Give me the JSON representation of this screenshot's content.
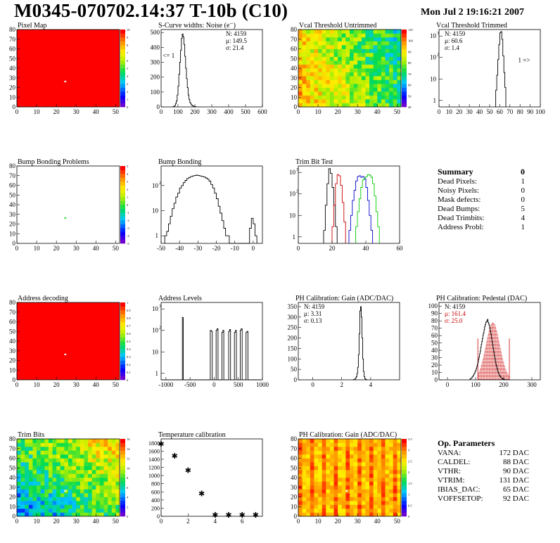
{
  "header": {
    "title": "M0345-070702.14:37 T-10b (C10)",
    "date": "Mon Jul  2 19:16:21 2007"
  },
  "summary": {
    "title": "Summary",
    "title_value": "0",
    "rows": [
      {
        "label": "Dead Pixels:",
        "value": "1"
      },
      {
        "label": "Noisy Pixels:",
        "value": "0"
      },
      {
        "label": "Mask defects:",
        "value": "0"
      },
      {
        "label": "Dead Bumps:",
        "value": "5"
      },
      {
        "label": "Dead Trimbits:",
        "value": "4"
      },
      {
        "label": "Address Probl:",
        "value": "1"
      }
    ]
  },
  "op_params": {
    "title": "Op. Parameters",
    "rows": [
      {
        "label": "VANA:",
        "value": "172 DAC"
      },
      {
        "label": "CALDEL:",
        "value": "88 DAC"
      },
      {
        "label": "VTHR:",
        "value": "90 DAC"
      },
      {
        "label": "VTRIM:",
        "value": "131 DAC"
      },
      {
        "label": "IBIAS_DAC:",
        "value": "65 DAC"
      },
      {
        "label": "VOFFSETOP:",
        "value": "92 DAC"
      }
    ]
  },
  "chart_data": [
    {
      "id": "pixel_map",
      "type": "heatmap",
      "title": "Pixel Map",
      "xlim": [
        0,
        52
      ],
      "ylim": [
        0,
        80
      ],
      "xticks": [
        0,
        10,
        20,
        30,
        40,
        50
      ],
      "yticks": [
        0,
        10,
        20,
        30,
        40,
        50,
        60,
        70,
        80
      ],
      "zlim": [
        0,
        10
      ],
      "palette": "uniform",
      "fill": "#ff0000",
      "zticks": [
        "0",
        "1",
        "2",
        "3",
        "4",
        "5",
        "6",
        "7",
        "8",
        "9",
        "10"
      ],
      "special_pixels": [
        {
          "x": 24,
          "y": 26,
          "color": "#ffffff"
        }
      ]
    },
    {
      "id": "scurve",
      "type": "histogram",
      "title": "S-Curve widths: Noise (e⁻)",
      "xlim": [
        0,
        600
      ],
      "ylim": [
        0,
        520
      ],
      "xticks": [
        0,
        100,
        200,
        300,
        400,
        500,
        600
      ],
      "yticks": [
        0,
        100,
        200,
        300,
        400,
        500
      ],
      "log": false,
      "stats": [
        "N: 4159",
        "μ: 149.5",
        "σ: 21.4"
      ],
      "annotations": [
        {
          "text": "<= 1",
          "x": 45,
          "y": 330
        }
      ],
      "series": [
        {
          "color": "#000000",
          "x0": 70,
          "bw": 5,
          "values": [
            2,
            4,
            10,
            22,
            40,
            80,
            140,
            220,
            300,
            380,
            460,
            490,
            470,
            420,
            340,
            260,
            190,
            130,
            80,
            50,
            30,
            20,
            12,
            8,
            5,
            3,
            2,
            1
          ]
        }
      ]
    },
    {
      "id": "vcal_untrimmed",
      "type": "heatmap",
      "title": "Vcal Threshold Untrimmed",
      "xlim": [
        0,
        52
      ],
      "ylim": [
        0,
        80
      ],
      "xticks": [
        0,
        10,
        20,
        30,
        40,
        50
      ],
      "yticks": [
        0,
        10,
        20,
        30,
        40,
        50,
        60,
        70,
        80
      ],
      "zlim": [
        40,
        110
      ],
      "palette": "rainbow",
      "zticks": [
        "40",
        "50",
        "60",
        "70",
        "80",
        "90",
        "100",
        "110"
      ],
      "gradient": "x",
      "special_pixels": []
    },
    {
      "id": "vcal_trimmed",
      "type": "histogram",
      "title": "Vcal Threshold Trimmed",
      "xlim": [
        0,
        100
      ],
      "ylim": [
        0.5,
        2000
      ],
      "xticks": [
        0,
        10,
        20,
        30,
        40,
        50,
        60,
        70,
        80,
        90,
        100
      ],
      "log": true,
      "stats": [
        "N: 4159",
        "μ: 60.6",
        "σ:  1.4"
      ],
      "annotations": [
        {
          "text": "1 =>",
          "x": 84,
          "y": 60
        }
      ],
      "series": [
        {
          "color": "#000000",
          "x0": 56,
          "bw": 1,
          "values": [
            3,
            15,
            80,
            400,
            1400,
            1600,
            700,
            120,
            20,
            4
          ]
        }
      ]
    },
    {
      "id": "bump_problems",
      "type": "heatmap",
      "title": "Bump Bonding Problems",
      "xlim": [
        0,
        52
      ],
      "ylim": [
        0,
        80
      ],
      "xticks": [
        0,
        10,
        20,
        30,
        40,
        50
      ],
      "yticks": [
        0,
        10,
        20,
        30,
        40,
        50,
        60,
        70,
        80
      ],
      "zlim": [
        -5,
        5
      ],
      "palette": "white",
      "zticks": [
        "-5",
        "-4",
        "-3",
        "-2",
        "-1",
        "0",
        "1",
        "2",
        "3",
        "4",
        "5"
      ],
      "special_pixels": [
        {
          "x": 24,
          "y": 26,
          "color": "#33dd33"
        }
      ]
    },
    {
      "id": "bump_bonding",
      "type": "histogram",
      "title": "Bump Bonding",
      "xlim": [
        -50,
        5
      ],
      "ylim": [
        0.5,
        600
      ],
      "xticks": [
        -50,
        -40,
        -30,
        -20,
        -10,
        0
      ],
      "log": true,
      "stats": [],
      "annotations": [],
      "series": [
        {
          "color": "#000000",
          "x0": -48,
          "bw": 1,
          "values": [
            1,
            1.5,
            3,
            6,
            12,
            20,
            35,
            50,
            80,
            100,
            130,
            160,
            190,
            210,
            230,
            240,
            250,
            260,
            250,
            240,
            230,
            220,
            200,
            180,
            150,
            110,
            80,
            50,
            30,
            15,
            8,
            4,
            2,
            1,
            1,
            0,
            0,
            0,
            0,
            0,
            0,
            0,
            0,
            0,
            0,
            0,
            2,
            5,
            3,
            1
          ]
        }
      ]
    },
    {
      "id": "trim_bit_test",
      "type": "histogram",
      "title": "Trim Bit Test",
      "xlim": [
        0,
        60
      ],
      "ylim": [
        0.5,
        2000
      ],
      "xticks": [
        0,
        20,
        40,
        60
      ],
      "log": true,
      "stats": [],
      "annotations": [],
      "series": [
        {
          "color": "#000000",
          "x0": 15,
          "bw": 1,
          "values": [
            2,
            30,
            300,
            1500,
            900,
            200,
            30,
            3
          ]
        },
        {
          "color": "#cc0000",
          "x0": 20,
          "bw": 1,
          "values": [
            3,
            30,
            300,
            800,
            700,
            250,
            40,
            5
          ]
        },
        {
          "color": "#0000cc",
          "x0": 30,
          "bw": 1,
          "values": [
            2,
            10,
            50,
            150,
            400,
            650,
            700,
            600,
            650,
            500,
            200,
            50,
            10,
            2
          ]
        },
        {
          "color": "#00cc00",
          "x0": 34,
          "bw": 1,
          "values": [
            3,
            15,
            60,
            200,
            450,
            550,
            650,
            800,
            750,
            600,
            300,
            80,
            15,
            3
          ]
        }
      ]
    },
    {
      "id": "address_decoding",
      "type": "heatmap",
      "title": "Address decoding",
      "xlim": [
        0,
        52
      ],
      "ylim": [
        0,
        80
      ],
      "xticks": [
        0,
        10,
        20,
        30,
        40,
        50
      ],
      "yticks": [
        0,
        10,
        20,
        30,
        40,
        50,
        60,
        70,
        80
      ],
      "zlim": [
        0,
        1
      ],
      "palette": "uniform",
      "fill": "#ff0000",
      "zticks": [
        "0",
        "0.1",
        "0.2",
        "0.3",
        "0.4",
        "0.5",
        "0.6",
        "0.7",
        "0.8",
        "0.9",
        "1"
      ],
      "special_pixels": [
        {
          "x": 24,
          "y": 26,
          "color": "#ffffff"
        }
      ]
    },
    {
      "id": "address_levels",
      "type": "histogram",
      "title": "Address Levels",
      "xlim": [
        -1100,
        1000
      ],
      "ylim": [
        0.5,
        2000
      ],
      "xticks": [
        -1000,
        -500,
        0,
        500,
        1000
      ],
      "log": true,
      "stats": [],
      "annotations": [],
      "series": [
        {
          "color": "#000000",
          "x0": -1100,
          "bw": 20,
          "values": [
            0,
            0,
            0,
            0,
            0,
            0,
            0,
            0,
            0,
            0,
            0,
            0,
            0,
            0,
            0,
            0,
            0,
            0,
            0,
            0,
            0,
            0,
            400,
            0,
            0,
            0,
            0,
            0,
            0,
            0,
            0,
            0,
            0,
            0,
            0,
            0,
            0,
            0,
            0,
            0,
            0,
            0,
            0,
            0,
            0,
            0,
            0,
            0,
            0,
            0,
            0,
            100,
            90,
            0,
            0,
            0,
            0,
            100,
            120,
            0,
            0,
            0,
            0,
            80,
            100,
            0,
            0,
            0,
            0,
            0,
            90,
            110,
            0,
            0,
            0,
            0,
            80,
            100,
            0,
            0,
            0,
            0,
            100,
            120,
            0,
            0,
            0,
            0,
            80,
            90,
            0,
            0,
            0,
            0,
            0,
            0,
            0,
            0,
            0,
            0,
            0,
            0,
            0,
            0
          ]
        }
      ]
    },
    {
      "id": "ph_gain_hist",
      "type": "histogram",
      "title": "PH Calibration: Gain (ADC/DAC)",
      "xlim": [
        -1,
        6
      ],
      "ylim": [
        0,
        370
      ],
      "xticks": [
        0,
        2,
        4
      ],
      "yticks": [
        0,
        50,
        100,
        150,
        200,
        250,
        300,
        350
      ],
      "log": false,
      "stats": [
        "N: 4159",
        "μ: 3.31",
        "σ: 0.13"
      ],
      "annotations": [],
      "series": [
        {
          "color": "#000000",
          "x0": 2.8,
          "bw": 0.05,
          "values": [
            1,
            2,
            4,
            8,
            15,
            30,
            60,
            120,
            220,
            330,
            350,
            300,
            200,
            100,
            40,
            15,
            5,
            2,
            1
          ]
        }
      ]
    },
    {
      "id": "ph_pedestal",
      "type": "histogram",
      "title": "PH Calibration: Pedestal (DAC)",
      "xlim": [
        -30,
        330
      ],
      "ylim": [
        0,
        105
      ],
      "xticks": [
        0,
        100,
        200,
        300
      ],
      "yticks": [
        0,
        10,
        20,
        30,
        40,
        50,
        60,
        70,
        80,
        90,
        100
      ],
      "log": false,
      "stats": [
        "N: 4159",
        "μ: 161.4",
        "σ: 25.0"
      ],
      "stats_colors": [
        "#000000",
        "#cc0000",
        "#cc0000"
      ],
      "fit": {
        "mu": 161.4,
        "sigma": 25.0,
        "amp": 78,
        "color": "#cc0000",
        "range": [
          108,
          220
        ]
      },
      "annotations": [],
      "series": [
        {
          "color": "#000000",
          "x0": 80,
          "bw": 2,
          "values": [
            1,
            2,
            2,
            3,
            4,
            5,
            6,
            8,
            9,
            11,
            13,
            15,
            18,
            21,
            24,
            28,
            31,
            35,
            39,
            44,
            48,
            52,
            56,
            61,
            64,
            68,
            72,
            75,
            78,
            79,
            80,
            82,
            78,
            76,
            74,
            70,
            66,
            62,
            57,
            52,
            48,
            43,
            38,
            33,
            29,
            25,
            21,
            18,
            15,
            12,
            10,
            8,
            6,
            5,
            4,
            3,
            2,
            2,
            1,
            1,
            1,
            0,
            0,
            0,
            0,
            0,
            0,
            0,
            0,
            0
          ]
        }
      ]
    },
    {
      "id": "trim_bits",
      "type": "heatmap",
      "title": "Trim Bits",
      "xlim": [
        0,
        52
      ],
      "ylim": [
        0,
        80
      ],
      "xticks": [
        0,
        10,
        20,
        30,
        40,
        50
      ],
      "yticks": [
        0,
        10,
        20,
        30,
        40,
        50,
        60,
        70,
        80
      ],
      "zlim": [
        0,
        16
      ],
      "palette": "rainbow",
      "zticks": [
        "0",
        "2",
        "4",
        "6",
        "8",
        "10",
        "12",
        "14",
        "16"
      ],
      "gradient": "diag",
      "special_pixels": [
        {
          "x": 24,
          "y": 26,
          "color": "#ffffff"
        }
      ]
    },
    {
      "id": "temperature",
      "type": "scatter",
      "title": "Temperature calibration",
      "xlim": [
        0,
        7.5
      ],
      "ylim": [
        0,
        1900
      ],
      "xticks": [
        0,
        2,
        4,
        6
      ],
      "yticks": [
        0,
        200,
        400,
        600,
        800,
        1000,
        1200,
        1400,
        1600,
        1800
      ],
      "marker": "*",
      "points": [
        [
          0,
          1800
        ],
        [
          1,
          1500
        ],
        [
          2,
          1150
        ],
        [
          3,
          580
        ],
        [
          4,
          50
        ],
        [
          5,
          50
        ],
        [
          6,
          50
        ],
        [
          7,
          50
        ]
      ]
    },
    {
      "id": "ph_gain_map",
      "type": "heatmap",
      "title": "PH Calibration: Gain (ADC/DAC)",
      "xlim": [
        0,
        52
      ],
      "ylim": [
        0,
        80
      ],
      "xticks": [
        0,
        10,
        20,
        30,
        40,
        50
      ],
      "yticks": [
        0,
        10,
        20,
        30,
        40,
        50,
        60,
        70,
        80
      ],
      "zlim": [
        0,
        3.5
      ],
      "palette": "rainbow",
      "zticks": [
        "0",
        "0.5",
        "1",
        "1.5",
        "2",
        "2.5",
        "3",
        "3.5"
      ],
      "gradient": "cols",
      "special_pixels": [
        {
          "x": 24,
          "y": 26,
          "color": "#ffffff"
        }
      ]
    }
  ]
}
